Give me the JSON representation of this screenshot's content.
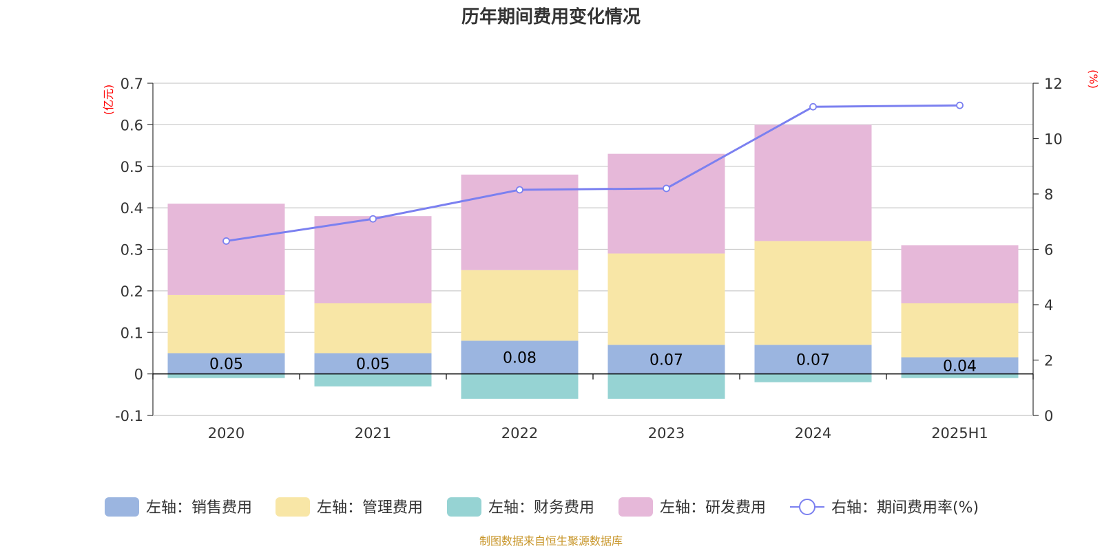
{
  "chart_data": {
    "type": "bar",
    "title": "历年期间费用变化情况",
    "categories": [
      "2020",
      "2021",
      "2022",
      "2023",
      "2024",
      "2025H1"
    ],
    "left_axis": {
      "unit": "(亿元)",
      "ylim": [
        -0.1,
        0.7
      ],
      "ticks": [
        "0.7",
        "0.6",
        "0.5",
        "0.4",
        "0.3",
        "0.2",
        "0.1",
        "0",
        "-0.1"
      ]
    },
    "right_axis": {
      "unit": "(%)",
      "ylim": [
        0,
        12
      ],
      "ticks": [
        "12",
        "10",
        "8",
        "6",
        "4",
        "2",
        "0"
      ]
    },
    "series": [
      {
        "name": "左轴：销售费用",
        "axis": "left",
        "kind": "bar",
        "color": "#9bb5e0",
        "values": [
          0.05,
          0.05,
          0.08,
          0.07,
          0.07,
          0.04
        ],
        "labels": [
          "0.05",
          "0.05",
          "0.08",
          "0.07",
          "0.07",
          "0.04"
        ]
      },
      {
        "name": "左轴：管理费用",
        "axis": "left",
        "kind": "bar",
        "color": "#f8e6a6",
        "values": [
          0.14,
          0.12,
          0.17,
          0.22,
          0.25,
          0.13
        ]
      },
      {
        "name": "左轴：财务费用",
        "axis": "left",
        "kind": "bar",
        "color": "#96d3d3",
        "values": [
          -0.01,
          -0.03,
          -0.06,
          -0.06,
          -0.02,
          -0.01
        ]
      },
      {
        "name": "左轴：研发费用",
        "axis": "left",
        "kind": "bar",
        "color": "#e6b8d9",
        "values": [
          0.22,
          0.21,
          0.23,
          0.24,
          0.28,
          0.14
        ]
      },
      {
        "name": "右轴：期间费用率(%)",
        "axis": "right",
        "kind": "line",
        "color": "#7b80f0",
        "values": [
          6.3,
          7.1,
          8.15,
          8.2,
          11.15,
          11.2
        ]
      }
    ],
    "grid": true,
    "legend": "bottom"
  },
  "footer": {
    "source": "制图数据来自恒生聚源数据库"
  }
}
